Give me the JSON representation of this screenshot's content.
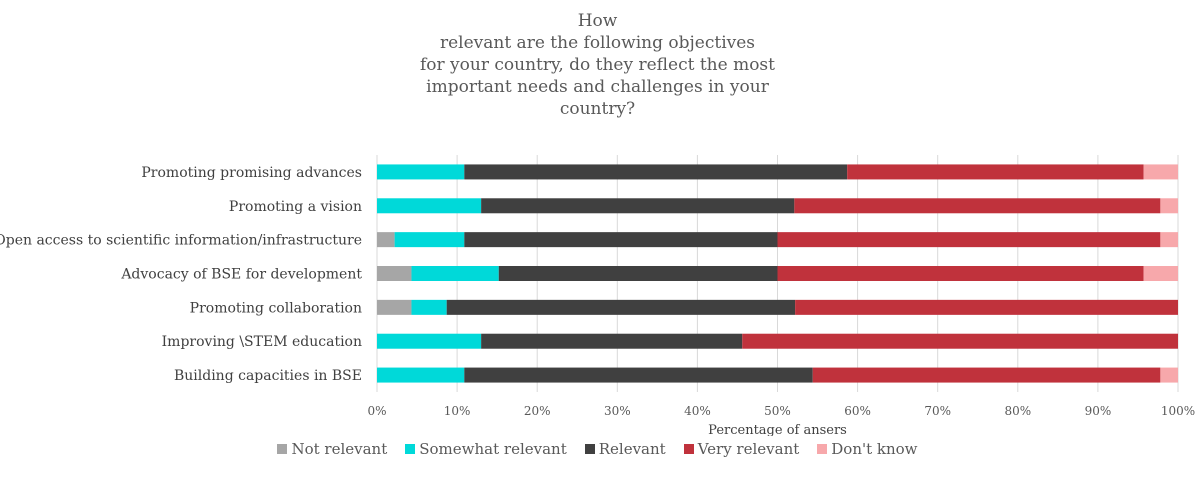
{
  "chart_data": {
    "type": "bar",
    "orientation": "horizontal",
    "stacked": true,
    "title_lines": [
      "How",
      "relevant are the following objectives",
      "for your country, do they reflect the most",
      "important needs and challenges in your",
      "country?"
    ],
    "xlabel": "Percentage of ansers",
    "ylabel": "",
    "xlim": [
      0,
      100
    ],
    "x_ticks": [
      "0%",
      "10%",
      "20%",
      "30%",
      "40%",
      "50%",
      "60%",
      "70%",
      "80%",
      "90%",
      "100%"
    ],
    "grid": true,
    "legend_position": "bottom",
    "categories": [
      "Promoting promising advances",
      "Promoting a vision",
      "Open access to scientific information/infrastructure",
      "Advocacy of BSE for development",
      "Promoting collaboration",
      "Improving \\STEM education",
      "Building capacities in BSE"
    ],
    "series": [
      {
        "name": "Not relevant",
        "color": "#a6a6a6",
        "values": [
          0,
          0,
          2.2,
          4.3,
          4.3,
          0,
          0
        ]
      },
      {
        "name": "Somewhat relevant",
        "color": "#00d9d9",
        "values": [
          10.9,
          13.0,
          8.7,
          10.9,
          4.4,
          13.0,
          10.9
        ]
      },
      {
        "name": "Relevant",
        "color": "#404040",
        "values": [
          47.8,
          39.1,
          39.1,
          34.8,
          43.5,
          32.6,
          43.5
        ]
      },
      {
        "name": "Very relevant",
        "color": "#c0323c",
        "values": [
          37.0,
          45.7,
          47.8,
          45.7,
          47.8,
          54.4,
          43.4
        ]
      },
      {
        "name": "Don't know",
        "color": "#f7a8ab",
        "values": [
          4.3,
          2.2,
          2.2,
          4.3,
          0,
          0,
          2.2
        ]
      }
    ]
  }
}
